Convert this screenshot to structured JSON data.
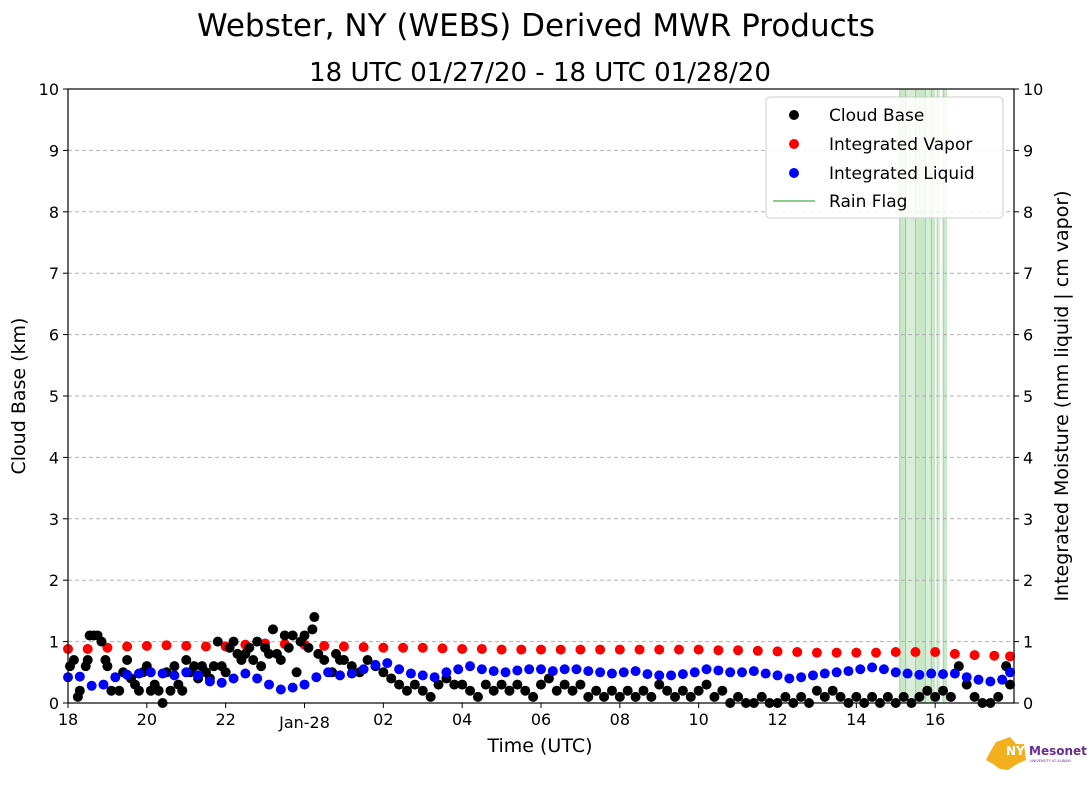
{
  "chart_data": {
    "type": "scatter",
    "title": "Webster, NY (WEBS) Derived MWR Products",
    "subtitle": "18 UTC 01/27/20 - 18 UTC 01/28/20",
    "xlabel": "Time (UTC)",
    "ylabel_left": "Cloud Base (km)",
    "ylabel_right": "Integrated Moisture (mm liquid | cm vapor)",
    "xlim": [
      18,
      42
    ],
    "ylim": [
      0,
      10
    ],
    "x_ticks": [
      {
        "x": 18,
        "label": "18"
      },
      {
        "x": 20,
        "label": "20"
      },
      {
        "x": 22,
        "label": "22"
      },
      {
        "x": 24,
        "label": "Jan-28"
      },
      {
        "x": 26,
        "label": "02"
      },
      {
        "x": 28,
        "label": "04"
      },
      {
        "x": 30,
        "label": "06"
      },
      {
        "x": 32,
        "label": "08"
      },
      {
        "x": 34,
        "label": "10"
      },
      {
        "x": 36,
        "label": "12"
      },
      {
        "x": 38,
        "label": "14"
      },
      {
        "x": 40,
        "label": "16"
      }
    ],
    "y_ticks": [
      "0",
      "1",
      "2",
      "3",
      "4",
      "5",
      "6",
      "7",
      "8",
      "9",
      "10"
    ],
    "grid": "horizontal dashed",
    "legend_position": "top-right",
    "series": [
      {
        "name": "Cloud Base",
        "color": "#000000",
        "marker": "dot",
        "points": [
          [
            18.05,
            0.6
          ],
          [
            18.15,
            0.7
          ],
          [
            18.25,
            0.1
          ],
          [
            18.3,
            0.2
          ],
          [
            18.45,
            0.6
          ],
          [
            18.5,
            0.7
          ],
          [
            18.55,
            1.1
          ],
          [
            18.65,
            1.1
          ],
          [
            18.75,
            1.1
          ],
          [
            18.85,
            1.0
          ],
          [
            18.95,
            0.7
          ],
          [
            19.0,
            0.6
          ],
          [
            19.1,
            0.2
          ],
          [
            19.3,
            0.2
          ],
          [
            19.4,
            0.5
          ],
          [
            19.5,
            0.7
          ],
          [
            19.6,
            0.4
          ],
          [
            19.7,
            0.3
          ],
          [
            19.8,
            0.2
          ],
          [
            19.9,
            0.5
          ],
          [
            20.0,
            0.6
          ],
          [
            20.1,
            0.2
          ],
          [
            20.2,
            0.3
          ],
          [
            20.3,
            0.2
          ],
          [
            20.4,
            0.0
          ],
          [
            20.5,
            0.5
          ],
          [
            20.6,
            0.2
          ],
          [
            20.7,
            0.6
          ],
          [
            20.8,
            0.3
          ],
          [
            20.9,
            0.2
          ],
          [
            21.0,
            0.7
          ],
          [
            21.1,
            0.5
          ],
          [
            21.2,
            0.6
          ],
          [
            21.3,
            0.4
          ],
          [
            21.4,
            0.6
          ],
          [
            21.5,
            0.5
          ],
          [
            21.6,
            0.4
          ],
          [
            21.7,
            0.6
          ],
          [
            21.8,
            1.0
          ],
          [
            21.9,
            0.6
          ],
          [
            22.0,
            0.5
          ],
          [
            22.1,
            0.9
          ],
          [
            22.2,
            1.0
          ],
          [
            22.3,
            0.8
          ],
          [
            22.4,
            0.7
          ],
          [
            22.5,
            0.8
          ],
          [
            22.6,
            0.9
          ],
          [
            22.7,
            0.7
          ],
          [
            22.8,
            1.0
          ],
          [
            22.9,
            0.6
          ],
          [
            23.0,
            0.9
          ],
          [
            23.1,
            0.8
          ],
          [
            23.2,
            1.2
          ],
          [
            23.3,
            0.8
          ],
          [
            23.4,
            0.7
          ],
          [
            23.5,
            1.1
          ],
          [
            23.6,
            0.9
          ],
          [
            23.7,
            1.1
          ],
          [
            23.8,
            0.5
          ],
          [
            23.9,
            1.0
          ],
          [
            24.0,
            1.1
          ],
          [
            24.1,
            0.9
          ],
          [
            24.2,
            1.2
          ],
          [
            24.25,
            1.4
          ],
          [
            24.35,
            0.8
          ],
          [
            24.5,
            0.7
          ],
          [
            24.7,
            0.5
          ],
          [
            24.8,
            0.8
          ],
          [
            24.9,
            0.7
          ],
          [
            25.0,
            0.7
          ],
          [
            25.2,
            0.6
          ],
          [
            25.4,
            0.5
          ],
          [
            25.6,
            0.7
          ],
          [
            25.8,
            0.6
          ],
          [
            26.0,
            0.5
          ],
          [
            26.2,
            0.4
          ],
          [
            26.4,
            0.3
          ],
          [
            26.6,
            0.2
          ],
          [
            26.8,
            0.3
          ],
          [
            27.0,
            0.2
          ],
          [
            27.2,
            0.1
          ],
          [
            27.4,
            0.3
          ],
          [
            27.6,
            0.4
          ],
          [
            27.8,
            0.3
          ],
          [
            28.0,
            0.3
          ],
          [
            28.2,
            0.2
          ],
          [
            28.4,
            0.1
          ],
          [
            28.6,
            0.3
          ],
          [
            28.8,
            0.2
          ],
          [
            29.0,
            0.3
          ],
          [
            29.2,
            0.2
          ],
          [
            29.4,
            0.3
          ],
          [
            29.6,
            0.2
          ],
          [
            29.8,
            0.1
          ],
          [
            30.0,
            0.3
          ],
          [
            30.2,
            0.4
          ],
          [
            30.4,
            0.2
          ],
          [
            30.6,
            0.3
          ],
          [
            30.8,
            0.2
          ],
          [
            31.0,
            0.3
          ],
          [
            31.2,
            0.1
          ],
          [
            31.4,
            0.2
          ],
          [
            31.6,
            0.1
          ],
          [
            31.8,
            0.2
          ],
          [
            32.0,
            0.1
          ],
          [
            32.2,
            0.2
          ],
          [
            32.4,
            0.1
          ],
          [
            32.6,
            0.2
          ],
          [
            32.8,
            0.1
          ],
          [
            33.0,
            0.3
          ],
          [
            33.2,
            0.2
          ],
          [
            33.4,
            0.1
          ],
          [
            33.6,
            0.2
          ],
          [
            33.8,
            0.1
          ],
          [
            34.0,
            0.2
          ],
          [
            34.2,
            0.3
          ],
          [
            34.4,
            0.1
          ],
          [
            34.6,
            0.2
          ],
          [
            34.8,
            0.0
          ],
          [
            35.0,
            0.1
          ],
          [
            35.2,
            0.0
          ],
          [
            35.4,
            0.0
          ],
          [
            35.6,
            0.1
          ],
          [
            35.8,
            0.0
          ],
          [
            36.0,
            0.0
          ],
          [
            36.2,
            0.1
          ],
          [
            36.4,
            0.0
          ],
          [
            36.6,
            0.1
          ],
          [
            36.8,
            0.0
          ],
          [
            37.0,
            0.2
          ],
          [
            37.2,
            0.1
          ],
          [
            37.4,
            0.2
          ],
          [
            37.6,
            0.1
          ],
          [
            37.8,
            0.0
          ],
          [
            38.0,
            0.1
          ],
          [
            38.2,
            0.0
          ],
          [
            38.4,
            0.1
          ],
          [
            38.6,
            0.0
          ],
          [
            38.8,
            0.1
          ],
          [
            39.0,
            0.0
          ],
          [
            39.2,
            0.1
          ],
          [
            39.4,
            0.0
          ],
          [
            39.6,
            0.1
          ],
          [
            39.8,
            0.2
          ],
          [
            40.0,
            0.1
          ],
          [
            40.2,
            0.2
          ],
          [
            40.4,
            0.1
          ],
          [
            40.6,
            0.6
          ],
          [
            40.8,
            0.3
          ],
          [
            41.0,
            0.1
          ],
          [
            41.2,
            0.0
          ],
          [
            41.4,
            0.0
          ],
          [
            41.6,
            0.1
          ],
          [
            41.8,
            0.6
          ],
          [
            41.9,
            0.3
          ]
        ]
      },
      {
        "name": "Integrated Vapor",
        "color": "#ff0000",
        "marker": "dot",
        "points": [
          [
            18.0,
            0.88
          ],
          [
            18.5,
            0.88
          ],
          [
            19.0,
            0.9
          ],
          [
            19.5,
            0.92
          ],
          [
            20.0,
            0.93
          ],
          [
            20.5,
            0.94
          ],
          [
            21.0,
            0.93
          ],
          [
            21.5,
            0.92
          ],
          [
            22.0,
            0.92
          ],
          [
            22.5,
            0.95
          ],
          [
            23.0,
            0.97
          ],
          [
            23.5,
            0.96
          ],
          [
            24.0,
            0.95
          ],
          [
            24.5,
            0.93
          ],
          [
            25.0,
            0.92
          ],
          [
            25.5,
            0.91
          ],
          [
            26.0,
            0.9
          ],
          [
            26.5,
            0.9
          ],
          [
            27.0,
            0.9
          ],
          [
            27.5,
            0.89
          ],
          [
            28.0,
            0.88
          ],
          [
            28.5,
            0.88
          ],
          [
            29.0,
            0.87
          ],
          [
            29.5,
            0.87
          ],
          [
            30.0,
            0.87
          ],
          [
            30.5,
            0.87
          ],
          [
            31.0,
            0.87
          ],
          [
            31.5,
            0.87
          ],
          [
            32.0,
            0.87
          ],
          [
            32.5,
            0.87
          ],
          [
            33.0,
            0.87
          ],
          [
            33.5,
            0.87
          ],
          [
            34.0,
            0.87
          ],
          [
            34.5,
            0.86
          ],
          [
            35.0,
            0.86
          ],
          [
            35.5,
            0.85
          ],
          [
            36.0,
            0.84
          ],
          [
            36.5,
            0.83
          ],
          [
            37.0,
            0.82
          ],
          [
            37.5,
            0.82
          ],
          [
            38.0,
            0.82
          ],
          [
            38.5,
            0.82
          ],
          [
            39.0,
            0.83
          ],
          [
            39.5,
            0.83
          ],
          [
            40.0,
            0.83
          ],
          [
            40.5,
            0.8
          ],
          [
            41.0,
            0.78
          ],
          [
            41.5,
            0.77
          ],
          [
            41.9,
            0.76
          ]
        ]
      },
      {
        "name": "Integrated Liquid",
        "color": "#0000ff",
        "marker": "dot",
        "points": [
          [
            18.0,
            0.42
          ],
          [
            18.3,
            0.43
          ],
          [
            18.6,
            0.28
          ],
          [
            18.9,
            0.3
          ],
          [
            19.2,
            0.42
          ],
          [
            19.5,
            0.46
          ],
          [
            19.8,
            0.48
          ],
          [
            20.1,
            0.5
          ],
          [
            20.4,
            0.48
          ],
          [
            20.7,
            0.45
          ],
          [
            21.0,
            0.5
          ],
          [
            21.3,
            0.45
          ],
          [
            21.6,
            0.35
          ],
          [
            21.9,
            0.33
          ],
          [
            22.2,
            0.4
          ],
          [
            22.5,
            0.48
          ],
          [
            22.8,
            0.4
          ],
          [
            23.1,
            0.3
          ],
          [
            23.4,
            0.22
          ],
          [
            23.7,
            0.25
          ],
          [
            24.0,
            0.3
          ],
          [
            24.3,
            0.42
          ],
          [
            24.6,
            0.5
          ],
          [
            24.9,
            0.45
          ],
          [
            25.2,
            0.48
          ],
          [
            25.5,
            0.55
          ],
          [
            25.8,
            0.62
          ],
          [
            26.1,
            0.65
          ],
          [
            26.4,
            0.55
          ],
          [
            26.7,
            0.48
          ],
          [
            27.0,
            0.45
          ],
          [
            27.3,
            0.42
          ],
          [
            27.6,
            0.5
          ],
          [
            27.9,
            0.55
          ],
          [
            28.2,
            0.6
          ],
          [
            28.5,
            0.55
          ],
          [
            28.8,
            0.52
          ],
          [
            29.1,
            0.5
          ],
          [
            29.4,
            0.53
          ],
          [
            29.7,
            0.55
          ],
          [
            30.0,
            0.55
          ],
          [
            30.3,
            0.52
          ],
          [
            30.6,
            0.55
          ],
          [
            30.9,
            0.55
          ],
          [
            31.2,
            0.52
          ],
          [
            31.5,
            0.5
          ],
          [
            31.8,
            0.48
          ],
          [
            32.1,
            0.5
          ],
          [
            32.4,
            0.52
          ],
          [
            32.7,
            0.47
          ],
          [
            33.0,
            0.45
          ],
          [
            33.3,
            0.45
          ],
          [
            33.6,
            0.47
          ],
          [
            33.9,
            0.5
          ],
          [
            34.2,
            0.55
          ],
          [
            34.5,
            0.53
          ],
          [
            34.8,
            0.5
          ],
          [
            35.1,
            0.5
          ],
          [
            35.4,
            0.52
          ],
          [
            35.7,
            0.48
          ],
          [
            36.0,
            0.45
          ],
          [
            36.3,
            0.4
          ],
          [
            36.6,
            0.42
          ],
          [
            36.9,
            0.45
          ],
          [
            37.2,
            0.48
          ],
          [
            37.5,
            0.5
          ],
          [
            37.8,
            0.52
          ],
          [
            38.1,
            0.55
          ],
          [
            38.4,
            0.58
          ],
          [
            38.7,
            0.55
          ],
          [
            39.0,
            0.5
          ],
          [
            39.3,
            0.48
          ],
          [
            39.6,
            0.46
          ],
          [
            39.9,
            0.48
          ],
          [
            40.2,
            0.47
          ],
          [
            40.5,
            0.48
          ],
          [
            40.8,
            0.42
          ],
          [
            41.1,
            0.38
          ],
          [
            41.4,
            0.35
          ],
          [
            41.7,
            0.38
          ],
          [
            41.9,
            0.5
          ]
        ]
      },
      {
        "name": "Rain Flag",
        "color": "#2ca02c",
        "marker": "line",
        "spans": [
          [
            39.1,
            39.25
          ],
          [
            39.25,
            39.5
          ],
          [
            39.5,
            39.75
          ],
          [
            39.75,
            39.9
          ],
          [
            39.9,
            40.0
          ],
          [
            40.05,
            40.12
          ],
          [
            40.2,
            40.3
          ]
        ]
      }
    ]
  },
  "logo": {
    "text_main": "NYS",
    "text_brand": "Mesonet",
    "text_sub": "UNIVERSITY AT ALBANY",
    "color": "#6b2c8f",
    "map_color": "#f2b01e"
  }
}
